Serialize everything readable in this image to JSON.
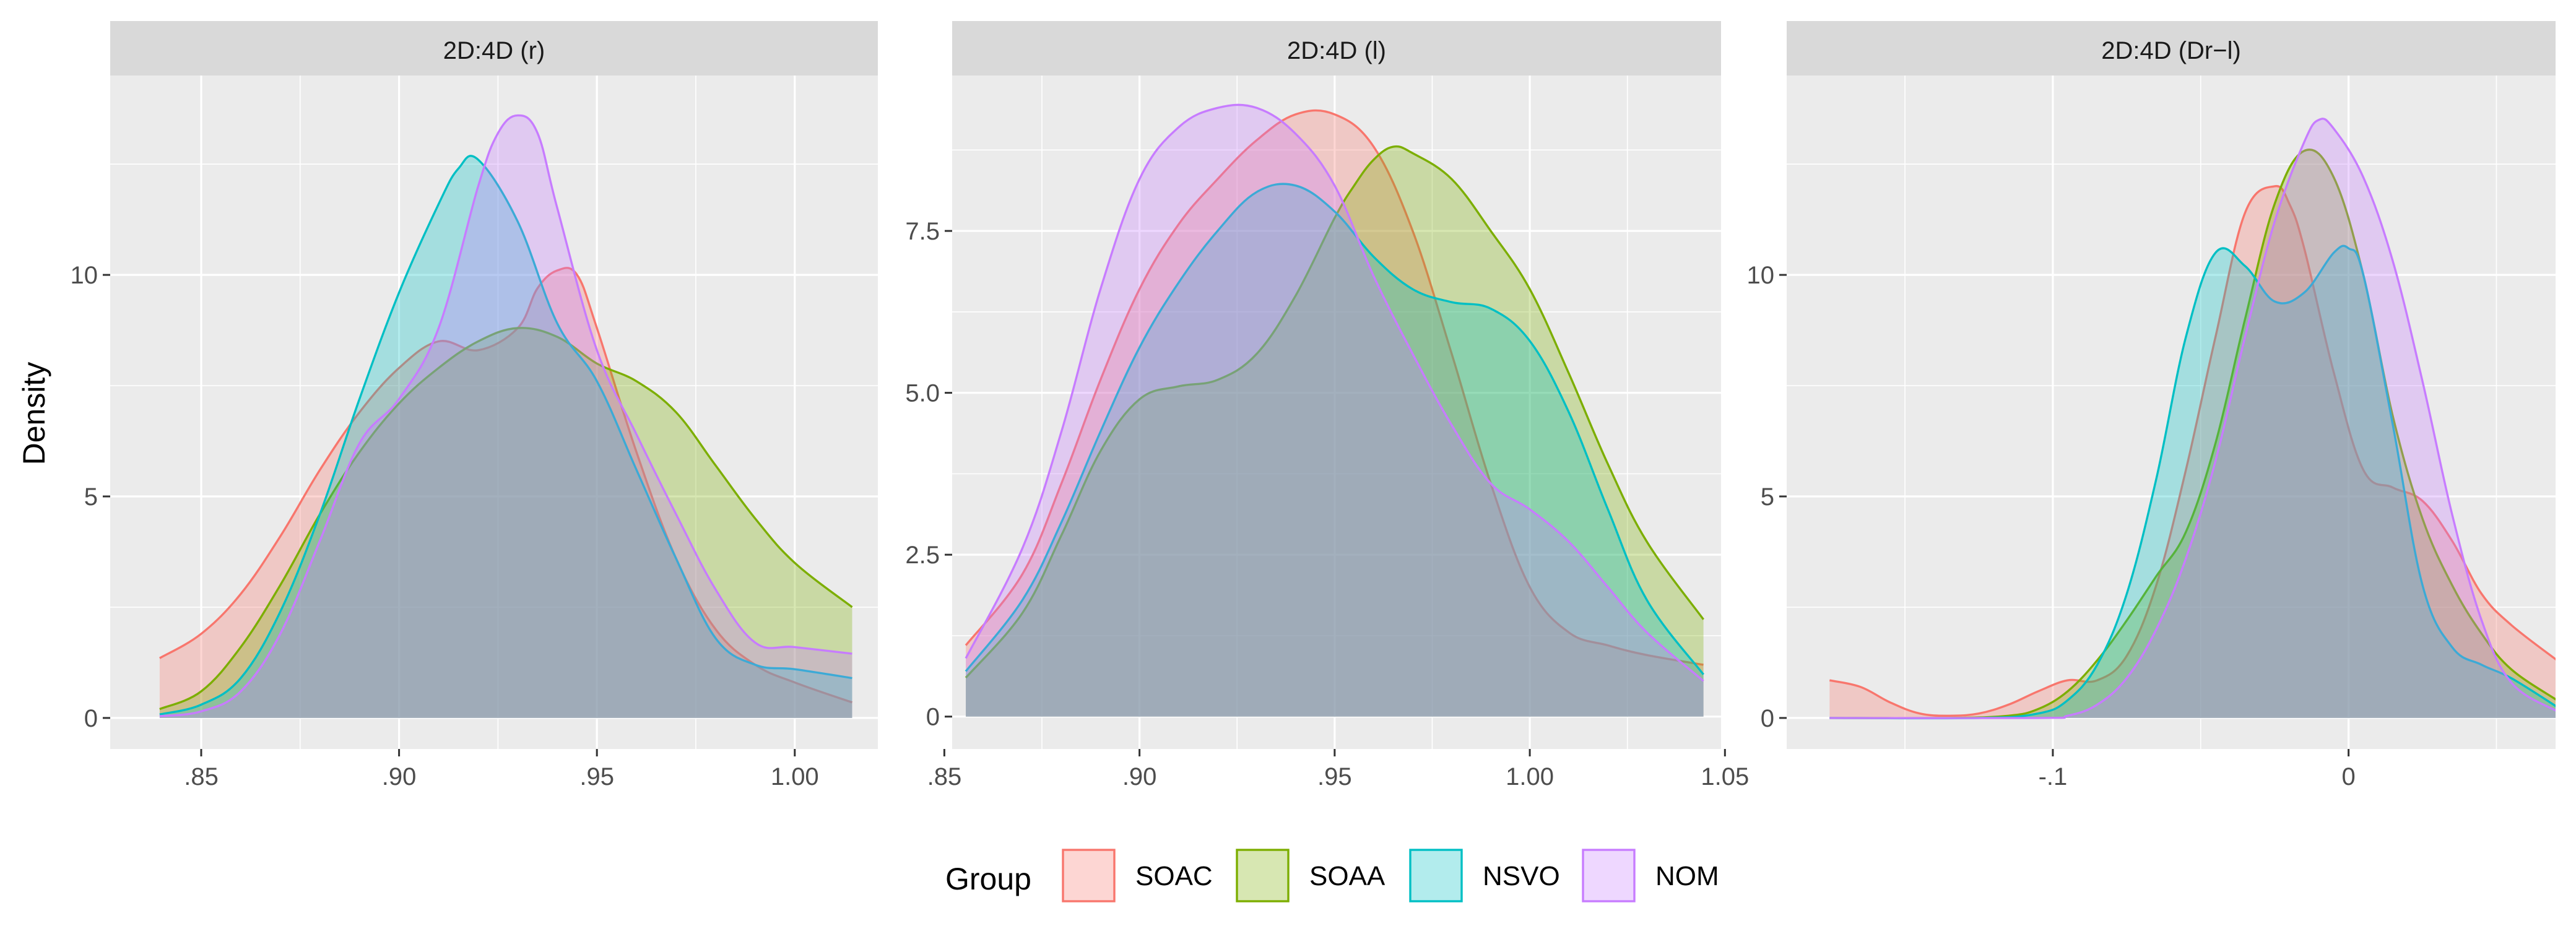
{
  "chart_data": {
    "type": "area",
    "subtype": "density",
    "ylabel": "Density",
    "legend": {
      "title": "Group",
      "position": "bottom",
      "items": [
        {
          "name": "SOAC",
          "color": "#F8766D"
        },
        {
          "name": "SOAA",
          "color": "#7CAE00"
        },
        {
          "name": "NSVO",
          "color": "#00BFC4"
        },
        {
          "name": "NOM",
          "color": "#C77CFF"
        }
      ]
    },
    "panels": [
      {
        "title": "2D:4D (r)",
        "xlim": [
          0.827,
          1.021
        ],
        "ylim": [
          -0.7,
          14.5
        ],
        "xticks": [
          0.85,
          0.9,
          0.95,
          1.0
        ],
        "xtick_labels": [
          ".85",
          ".90",
          ".95",
          "1.00"
        ],
        "yticks": [
          0,
          5,
          10
        ],
        "ytick_labels": [
          "0",
          "5",
          "10"
        ],
        "series": [
          {
            "name": "SOAC",
            "x": [
              0.8395,
              0.85,
              0.86,
              0.87,
              0.88,
              0.89,
              0.9,
              0.91,
              0.92,
              0.93,
              0.935,
              0.94,
              0.945,
              0.95,
              0.96,
              0.97,
              0.98,
              0.99,
              1.0,
              1.0145
            ],
            "y": [
              1.35,
              1.9,
              2.8,
              4.1,
              5.6,
              6.9,
              7.9,
              8.5,
              8.3,
              8.8,
              9.7,
              10.1,
              10.0,
              8.8,
              6.0,
              3.6,
              2.0,
              1.2,
              0.8,
              0.35
            ]
          },
          {
            "name": "SOAA",
            "x": [
              0.8395,
              0.85,
              0.86,
              0.87,
              0.88,
              0.89,
              0.9,
              0.91,
              0.92,
              0.93,
              0.94,
              0.95,
              0.96,
              0.97,
              0.98,
              0.99,
              1.0,
              1.0145
            ],
            "y": [
              0.2,
              0.6,
              1.6,
              3.0,
              4.6,
              6.0,
              7.1,
              7.9,
              8.5,
              8.8,
              8.6,
              8.0,
              7.6,
              6.9,
              5.7,
              4.5,
              3.5,
              2.5
            ]
          },
          {
            "name": "NSVO",
            "x": [
              0.8395,
              0.85,
              0.86,
              0.87,
              0.88,
              0.89,
              0.9,
              0.91,
              0.915,
              0.92,
              0.93,
              0.94,
              0.95,
              0.96,
              0.97,
              0.98,
              0.99,
              1.0,
              1.0145
            ],
            "y": [
              0.08,
              0.3,
              0.9,
              2.4,
              4.6,
              7.2,
              9.6,
              11.6,
              12.4,
              12.6,
              11.2,
              8.9,
              7.6,
              5.6,
              3.6,
              1.8,
              1.2,
              1.1,
              0.9
            ]
          },
          {
            "name": "NOM",
            "x": [
              0.8395,
              0.85,
              0.86,
              0.87,
              0.88,
              0.89,
              0.9,
              0.91,
              0.92,
              0.925,
              0.93,
              0.935,
              0.94,
              0.95,
              0.96,
              0.97,
              0.98,
              0.99,
              1.0,
              1.0145
            ],
            "y": [
              0.04,
              0.15,
              0.6,
              1.9,
              4.0,
              6.2,
              7.2,
              8.8,
              12.0,
              13.2,
              13.6,
              13.2,
              11.5,
              8.3,
              6.4,
              4.6,
              2.9,
              1.7,
              1.6,
              1.45
            ]
          }
        ]
      },
      {
        "title": "2D:4D (l)",
        "xlim": [
          0.852,
          1.049
        ],
        "ylim": [
          -0.5,
          9.9
        ],
        "xticks": [
          0.85,
          0.9,
          0.95,
          1.0,
          1.05
        ],
        "xtick_labels": [
          ".85",
          ".90",
          ".95",
          "1.00",
          "1.05"
        ],
        "yticks": [
          0,
          2.5,
          5.0,
          7.5
        ],
        "ytick_labels": [
          "0",
          "2.5",
          "5.0",
          "7.5"
        ],
        "series": [
          {
            "name": "SOAC",
            "x": [
              0.8555,
              0.87,
              0.88,
              0.89,
              0.9,
              0.91,
              0.92,
              0.93,
              0.94,
              0.95,
              0.96,
              0.97,
              0.98,
              0.99,
              1.0,
              1.01,
              1.02,
              1.03,
              1.0445
            ],
            "y": [
              1.1,
              2.2,
              3.6,
              5.2,
              6.6,
              7.6,
              8.3,
              8.9,
              9.3,
              9.3,
              8.8,
              7.5,
              5.6,
              3.6,
              2.0,
              1.3,
              1.1,
              0.95,
              0.8
            ]
          },
          {
            "name": "SOAA",
            "x": [
              0.8555,
              0.87,
              0.88,
              0.89,
              0.9,
              0.91,
              0.92,
              0.93,
              0.94,
              0.95,
              0.955,
              0.96,
              0.965,
              0.97,
              0.98,
              0.99,
              1.0,
              1.01,
              1.02,
              1.03,
              1.0445
            ],
            "y": [
              0.6,
              1.6,
              2.8,
              4.1,
              4.9,
              5.1,
              5.2,
              5.6,
              6.5,
              7.7,
              8.2,
              8.6,
              8.8,
              8.7,
              8.3,
              7.5,
              6.6,
              5.3,
              3.9,
              2.7,
              1.5
            ]
          },
          {
            "name": "NSVO",
            "x": [
              0.8555,
              0.87,
              0.88,
              0.89,
              0.9,
              0.91,
              0.92,
              0.93,
              0.94,
              0.95,
              0.96,
              0.97,
              0.98,
              0.99,
              1.0,
              1.01,
              1.02,
              1.03,
              1.0445
            ],
            "y": [
              0.7,
              1.8,
              3.0,
              4.4,
              5.7,
              6.7,
              7.5,
              8.1,
              8.2,
              7.8,
              7.1,
              6.6,
              6.4,
              6.3,
              5.8,
              4.7,
              3.2,
              1.8,
              0.65
            ]
          },
          {
            "name": "NOM",
            "x": [
              0.8555,
              0.87,
              0.88,
              0.89,
              0.9,
              0.91,
              0.92,
              0.93,
              0.94,
              0.95,
              0.96,
              0.97,
              0.98,
              0.99,
              1.0,
              1.01,
              1.02,
              1.03,
              1.0445
            ],
            "y": [
              0.9,
              2.6,
              4.4,
              6.6,
              8.3,
              9.1,
              9.4,
              9.4,
              9.0,
              8.2,
              6.8,
              5.6,
              4.5,
              3.6,
              3.2,
              2.7,
              2.0,
              1.3,
              0.55
            ]
          }
        ]
      },
      {
        "title": "2D:4D (Dr−l)",
        "xlim": [
          -0.19,
          0.07
        ],
        "ylim": [
          -0.7,
          14.5
        ],
        "xticks": [
          -0.1,
          0
        ],
        "xtick_labels": [
          "-.1",
          "0"
        ],
        "yticks": [
          0,
          5,
          10
        ],
        "ytick_labels": [
          "0",
          "5",
          "10"
        ],
        "series": [
          {
            "name": "SOAC",
            "x": [
              -0.1755,
              -0.165,
              -0.155,
              -0.145,
              -0.135,
              -0.125,
              -0.115,
              -0.105,
              -0.095,
              -0.085,
              -0.075,
              -0.065,
              -0.055,
              -0.045,
              -0.035,
              -0.025,
              -0.02,
              -0.015,
              -0.005,
              0.005,
              0.015,
              0.025,
              0.035,
              0.045,
              0.055,
              0.0705
            ],
            "y": [
              0.85,
              0.7,
              0.35,
              0.1,
              0.05,
              0.1,
              0.3,
              0.6,
              0.85,
              0.85,
              1.4,
              3.0,
              5.6,
              8.6,
              11.4,
              12.0,
              11.6,
              10.6,
              7.8,
              5.6,
              5.2,
              4.9,
              4.0,
              2.8,
              2.1,
              1.3
            ]
          },
          {
            "name": "SOAA",
            "x": [
              -0.1755,
              -0.135,
              -0.115,
              -0.105,
              -0.095,
              -0.085,
              -0.075,
              -0.065,
              -0.055,
              -0.045,
              -0.035,
              -0.025,
              -0.015,
              -0.005,
              0.005,
              0.015,
              0.025,
              0.035,
              0.045,
              0.055,
              0.0705
            ],
            "y": [
              0.0,
              0.0,
              0.05,
              0.2,
              0.6,
              1.3,
              2.2,
              3.2,
              4.2,
              6.2,
              9.0,
              11.6,
              12.8,
              12.2,
              10.0,
              6.8,
              4.5,
              3.0,
              1.9,
              1.1,
              0.4
            ]
          },
          {
            "name": "NSVO",
            "x": [
              -0.1755,
              -0.125,
              -0.105,
              -0.095,
              -0.085,
              -0.075,
              -0.065,
              -0.055,
              -0.045,
              -0.035,
              -0.025,
              -0.015,
              -0.005,
              0.0,
              0.005,
              0.015,
              0.025,
              0.035,
              0.045,
              0.055,
              0.0705
            ],
            "y": [
              0.0,
              0.0,
              0.1,
              0.4,
              1.2,
              2.8,
              5.4,
              8.6,
              10.5,
              10.2,
              9.4,
              9.6,
              10.5,
              10.6,
              10.0,
              6.6,
              3.0,
              1.6,
              1.2,
              0.9,
              0.25
            ]
          },
          {
            "name": "NOM",
            "x": [
              -0.1755,
              -0.105,
              -0.095,
              -0.085,
              -0.075,
              -0.065,
              -0.055,
              -0.045,
              -0.035,
              -0.025,
              -0.015,
              -0.01,
              -0.005,
              0.005,
              0.015,
              0.025,
              0.035,
              0.045,
              0.055,
              0.0705
            ],
            "y": [
              0.0,
              0.0,
              0.05,
              0.3,
              0.9,
              2.0,
              3.6,
              5.8,
              8.6,
              11.2,
              13.0,
              13.5,
              13.3,
              12.2,
              10.3,
              7.6,
              4.6,
              2.2,
              0.8,
              0.15
            ]
          }
        ]
      }
    ]
  }
}
